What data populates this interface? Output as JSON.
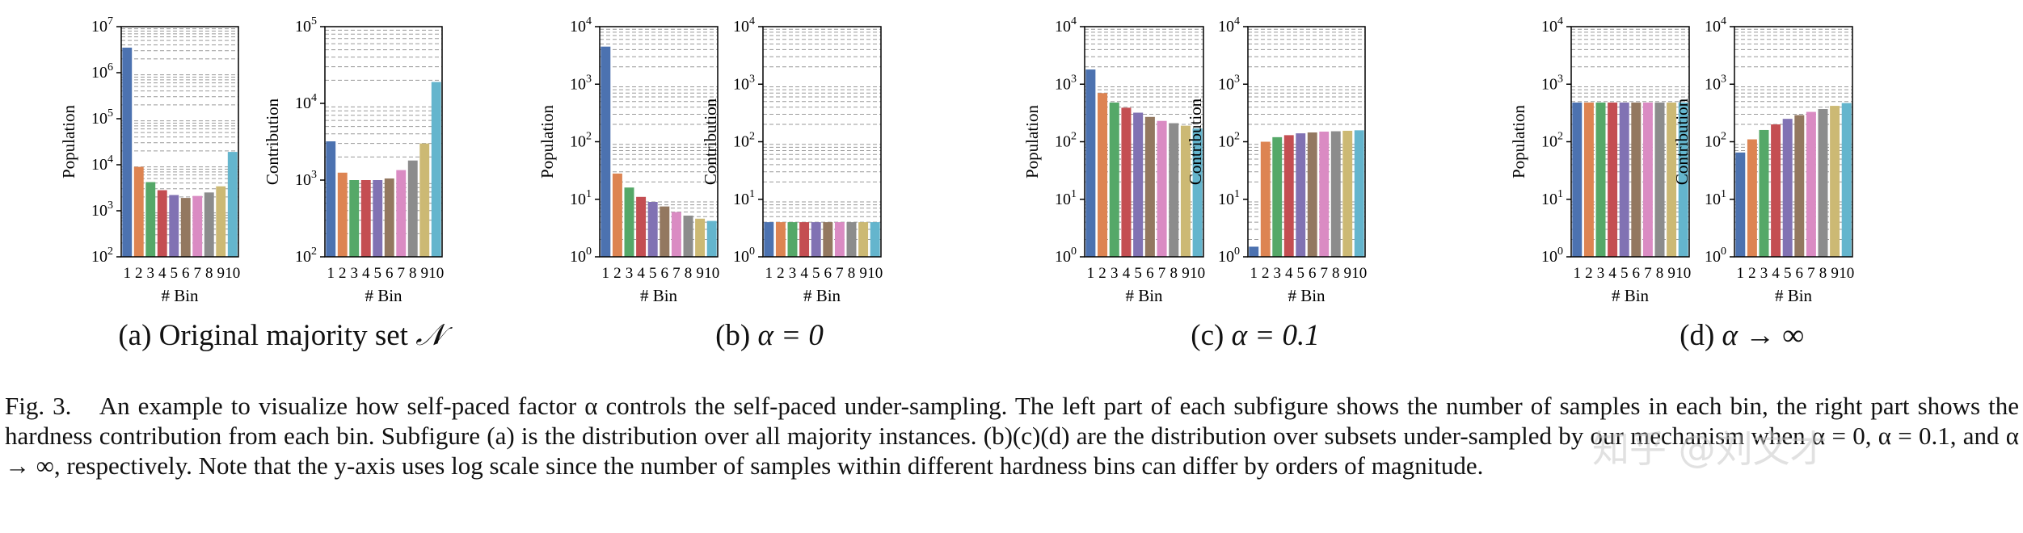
{
  "figure": {
    "subcaptions": [
      {
        "label": "(a) Original majority set",
        "symbol": "𝒩"
      },
      {
        "label": "(b)",
        "symbol": "α = 0"
      },
      {
        "label": "(c)",
        "symbol": "α = 0.1"
      },
      {
        "label": "(d)",
        "symbol": "α → ∞"
      }
    ],
    "caption": {
      "lead": "Fig. 3.",
      "text": "An example to visualize how self-paced factor α controls the self-paced under-sampling. The left part of each subfigure shows the number of samples in each bin, the right part shows the hardness contribution from each bin. Subfigure (a) is the distribution over all majority instances. (b)(c)(d) are the distribution over subsets under-sampled by our mechanism when α = 0, α = 0.1, and α → ∞, respectively. Note that the y-axis uses log scale since the number of samples within different hardness bins can differ by orders of magnitude."
    },
    "watermark": "知乎 @刘文才"
  },
  "colors": [
    "#4c72b0",
    "#dd8452",
    "#55a868",
    "#c44e52",
    "#8172b3",
    "#937860",
    "#da8bc3",
    "#8c8c8c",
    "#ccb974",
    "#64b5cd"
  ],
  "chart_data": [
    {
      "type": "bar",
      "panel": "a-left",
      "ylabel": "Population",
      "xlabel": "# Bin",
      "yscale": "log",
      "ylim": [
        100,
        10000000
      ],
      "yticks": [
        "10^2",
        "10^3",
        "10^4",
        "10^5",
        "10^6",
        "10^7"
      ],
      "categories": [
        "1",
        "2",
        "3",
        "4",
        "5",
        "6",
        "7",
        "8",
        "9",
        "10"
      ],
      "values": [
        3500000,
        9000,
        4200,
        2800,
        2200,
        1900,
        2100,
        2500,
        3400,
        19000
      ]
    },
    {
      "type": "bar",
      "panel": "a-right",
      "ylabel": "Contribution",
      "xlabel": "# Bin",
      "yscale": "log",
      "ylim": [
        100,
        100000
      ],
      "yticks": [
        "10^2",
        "10^3",
        "10^4",
        "10^5"
      ],
      "categories": [
        "1",
        "2",
        "3",
        "4",
        "5",
        "6",
        "7",
        "8",
        "9",
        "10"
      ],
      "values": [
        3200,
        1250,
        1000,
        1000,
        1000,
        1050,
        1350,
        1800,
        3000,
        19000
      ]
    },
    {
      "type": "bar",
      "panel": "b-left",
      "ylabel": "Population",
      "xlabel": "# Bin",
      "yscale": "log",
      "ylim": [
        1,
        10000
      ],
      "yticks": [
        "10^0",
        "10^1",
        "10^2",
        "10^3",
        "10^4"
      ],
      "categories": [
        "1",
        "2",
        "3",
        "4",
        "5",
        "6",
        "7",
        "8",
        "9",
        "10"
      ],
      "values": [
        4500,
        28,
        16,
        11,
        9,
        7.5,
        6,
        5.2,
        4.6,
        4.2
      ]
    },
    {
      "type": "bar",
      "panel": "b-right",
      "ylabel": "Contribution",
      "xlabel": "# Bin",
      "yscale": "log",
      "ylim": [
        1,
        10000
      ],
      "yticks": [
        "10^0",
        "10^1",
        "10^2",
        "10^3",
        "10^4"
      ],
      "categories": [
        "1",
        "2",
        "3",
        "4",
        "5",
        "6",
        "7",
        "8",
        "9",
        "10"
      ],
      "values": [
        4,
        4,
        4,
        4,
        4,
        4,
        4,
        4,
        4,
        4
      ]
    },
    {
      "type": "bar",
      "panel": "c-left",
      "ylabel": "Population",
      "xlabel": "# Bin",
      "yscale": "log",
      "ylim": [
        1,
        10000
      ],
      "yticks": [
        "10^0",
        "10^1",
        "10^2",
        "10^3",
        "10^4"
      ],
      "categories": [
        "1",
        "2",
        "3",
        "4",
        "5",
        "6",
        "7",
        "8",
        "9",
        "10"
      ],
      "values": [
        1800,
        700,
        480,
        390,
        320,
        270,
        230,
        210,
        190,
        170
      ]
    },
    {
      "type": "bar",
      "panel": "c-right",
      "ylabel": "Contribution",
      "xlabel": "# Bin",
      "yscale": "log",
      "ylim": [
        1,
        10000
      ],
      "yticks": [
        "10^0",
        "10^1",
        "10^2",
        "10^3",
        "10^4"
      ],
      "categories": [
        "1",
        "2",
        "3",
        "4",
        "5",
        "6",
        "7",
        "8",
        "9",
        "10"
      ],
      "values": [
        1.5,
        100,
        120,
        130,
        140,
        145,
        150,
        152,
        155,
        158
      ]
    },
    {
      "type": "bar",
      "panel": "d-left",
      "ylabel": "Population",
      "xlabel": "# Bin",
      "yscale": "log",
      "ylim": [
        1,
        10000
      ],
      "yticks": [
        "10^0",
        "10^1",
        "10^2",
        "10^3",
        "10^4"
      ],
      "categories": [
        "1",
        "2",
        "3",
        "4",
        "5",
        "6",
        "7",
        "8",
        "9",
        "10"
      ],
      "values": [
        480,
        480,
        480,
        480,
        480,
        480,
        480,
        480,
        480,
        480
      ]
    },
    {
      "type": "bar",
      "panel": "d-right",
      "ylabel": "Contribution",
      "xlabel": "# Bin",
      "yscale": "log",
      "ylim": [
        1,
        10000
      ],
      "yticks": [
        "10^0",
        "10^1",
        "10^2",
        "10^3",
        "10^4"
      ],
      "categories": [
        "1",
        "2",
        "3",
        "4",
        "5",
        "6",
        "7",
        "8",
        "9",
        "10"
      ],
      "values": [
        65,
        110,
        160,
        200,
        250,
        290,
        330,
        370,
        420,
        470
      ]
    }
  ]
}
